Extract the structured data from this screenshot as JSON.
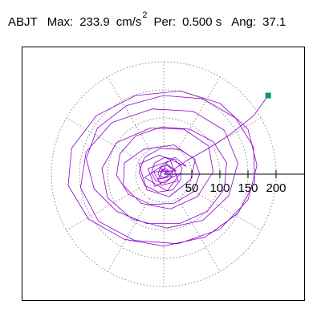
{
  "header": {
    "station": "ABJT",
    "max_label": "Max:",
    "max_value": "233.9",
    "max_unit": "cm/s",
    "max_unit_exp": "2",
    "period_label": "Per:",
    "period_value": "0.500 s",
    "angle_label": "Ang:",
    "angle_value": "37.1"
  },
  "chart_data": {
    "type": "polar-orbit",
    "title": "",
    "units": "cm/s2",
    "radial_ticks": [
      50,
      100,
      150,
      200
    ],
    "radial_tick_labels": [
      "50",
      "100",
      "150",
      "200"
    ],
    "ring_radii": [
      50,
      100,
      150,
      200
    ],
    "spoke_angles_deg": [
      30,
      60,
      90,
      120,
      150,
      210,
      240,
      270,
      300,
      330
    ],
    "max_amplitude": 233.9,
    "angle_deg": 37.1,
    "grid": true,
    "colors": {
      "trace": "#8800cc",
      "endpoint": "#009977",
      "grid": "#808080",
      "axis": "#000000"
    },
    "endpoint": {
      "x": 186,
      "y": 140
    },
    "trace_points": [
      [
        0,
        0
      ],
      [
        8,
        5
      ],
      [
        -6,
        10
      ],
      [
        14,
        -4
      ],
      [
        -10,
        -9
      ],
      [
        5,
        18
      ],
      [
        22,
        6
      ],
      [
        -18,
        4
      ],
      [
        -4,
        -20
      ],
      [
        26,
        -12
      ],
      [
        12,
        24
      ],
      [
        -28,
        10
      ],
      [
        -16,
        -22
      ],
      [
        30,
        2
      ],
      [
        6,
        -30
      ],
      [
        -34,
        -6
      ],
      [
        20,
        30
      ],
      [
        40,
        14
      ],
      [
        -8,
        34
      ],
      [
        -44,
        18
      ],
      [
        -30,
        -28
      ],
      [
        10,
        -40
      ],
      [
        48,
        -10
      ],
      [
        56,
        26
      ],
      [
        18,
        52
      ],
      [
        -36,
        44
      ],
      [
        -70,
        20
      ],
      [
        -72,
        -20
      ],
      [
        -40,
        -52
      ],
      [
        12,
        -62
      ],
      [
        60,
        -40
      ],
      [
        88,
        4
      ],
      [
        80,
        50
      ],
      [
        36,
        80
      ],
      [
        -24,
        82
      ],
      [
        -84,
        56
      ],
      [
        -110,
        10
      ],
      [
        -100,
        -42
      ],
      [
        -56,
        -80
      ],
      [
        6,
        -96
      ],
      [
        70,
        -82
      ],
      [
        116,
        -38
      ],
      [
        132,
        20
      ],
      [
        108,
        78
      ],
      [
        52,
        112
      ],
      [
        -20,
        116
      ],
      [
        -92,
        92
      ],
      [
        -138,
        40
      ],
      [
        -148,
        -24
      ],
      [
        -116,
        -84
      ],
      [
        -52,
        -118
      ],
      [
        26,
        -124
      ],
      [
        100,
        -98
      ],
      [
        150,
        -46
      ],
      [
        166,
        16
      ],
      [
        150,
        80
      ],
      [
        100,
        126
      ],
      [
        30,
        148
      ],
      [
        -50,
        140
      ],
      [
        -120,
        104
      ],
      [
        -164,
        46
      ],
      [
        -170,
        -20
      ],
      [
        -134,
        -80
      ],
      [
        -70,
        -116
      ],
      [
        0,
        -128
      ],
      [
        74,
        -112
      ],
      [
        132,
        -70
      ],
      [
        162,
        -14
      ],
      [
        160,
        48
      ],
      [
        128,
        100
      ],
      [
        70,
        134
      ],
      [
        0,
        140
      ],
      [
        -66,
        122
      ],
      [
        -118,
        82
      ],
      [
        -138,
        28
      ],
      [
        -124,
        -26
      ],
      [
        -84,
        -66
      ],
      [
        -30,
        -88
      ],
      [
        28,
        -88
      ],
      [
        78,
        -66
      ],
      [
        108,
        -26
      ],
      [
        112,
        20
      ],
      [
        88,
        58
      ],
      [
        46,
        80
      ],
      [
        -4,
        84
      ],
      [
        -50,
        68
      ],
      [
        -78,
        36
      ],
      [
        -84,
        -2
      ],
      [
        -62,
        -36
      ],
      [
        -24,
        -54
      ],
      [
        18,
        -52
      ],
      [
        52,
        -32
      ],
      [
        64,
        0
      ],
      [
        54,
        28
      ],
      [
        28,
        44
      ],
      [
        -6,
        46
      ],
      [
        -34,
        30
      ],
      [
        -44,
        4
      ],
      [
        -34,
        -20
      ],
      [
        -10,
        -32
      ],
      [
        16,
        -28
      ],
      [
        30,
        -10
      ],
      [
        32,
        12
      ],
      [
        20,
        26
      ],
      [
        2,
        30
      ],
      [
        -16,
        20
      ],
      [
        -22,
        2
      ],
      [
        -14,
        -12
      ],
      [
        2,
        -16
      ],
      [
        14,
        -6
      ],
      [
        16,
        8
      ],
      [
        6,
        16
      ],
      [
        -6,
        12
      ],
      [
        -10,
        0
      ],
      [
        -4,
        -8
      ],
      [
        6,
        -6
      ],
      [
        10,
        4
      ],
      [
        4,
        10
      ],
      [
        -4,
        6
      ],
      [
        -6,
        -2
      ],
      [
        0,
        -6
      ],
      [
        8,
        -2
      ],
      [
        20,
        10
      ],
      [
        44,
        26
      ],
      [
        80,
        46
      ],
      [
        120,
        72
      ],
      [
        160,
        104
      ],
      [
        186,
        140
      ]
    ]
  }
}
